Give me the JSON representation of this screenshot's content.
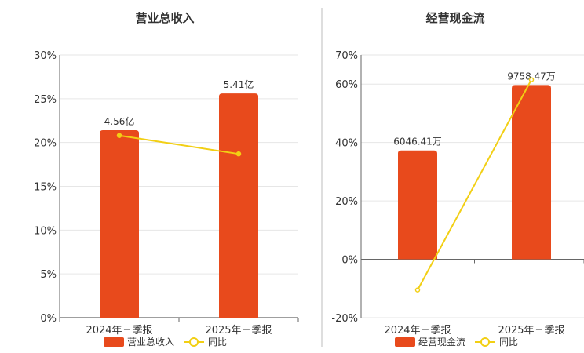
{
  "chart_data": [
    {
      "type": "bar",
      "title": "营业总收入",
      "categories": [
        "2024年三季报",
        "2025年三季报"
      ],
      "y_axis": {
        "range": [
          0,
          30
        ],
        "ticks": [
          "0%",
          "5%",
          "10%",
          "15%",
          "20%",
          "25%",
          "30%"
        ]
      },
      "grid": true,
      "legend": {
        "position": "bottom",
        "items": [
          "营业总收入",
          "同比"
        ]
      },
      "series": [
        {
          "name": "营业总收入",
          "type": "bar",
          "values": [
            21.4,
            25.6
          ],
          "labels": [
            "4.56亿",
            "5.41亿"
          ],
          "color": "#E84A1C"
        },
        {
          "name": "同比",
          "type": "line",
          "values": [
            20.8,
            18.7
          ],
          "color": "#F2CF14"
        }
      ]
    },
    {
      "type": "bar",
      "title": "经营现金流",
      "categories": [
        "2024年三季报",
        "2025年三季报"
      ],
      "y_axis": {
        "range": [
          -20,
          70
        ],
        "ticks": [
          "-20%",
          "0%",
          "20%",
          "40%",
          "60%",
          "70%"
        ]
      },
      "grid": true,
      "legend": {
        "position": "bottom",
        "items": [
          "经营现金流",
          "同比"
        ]
      },
      "series": [
        {
          "name": "经营现金流",
          "type": "bar",
          "values": [
            37.3,
            59.7
          ],
          "labels": [
            "6046.41万",
            "9758.47万"
          ],
          "color": "#E84A1C"
        },
        {
          "name": "同比",
          "type": "line",
          "values": [
            -10.5,
            61.5
          ],
          "color": "#F2CF14"
        }
      ]
    }
  ]
}
